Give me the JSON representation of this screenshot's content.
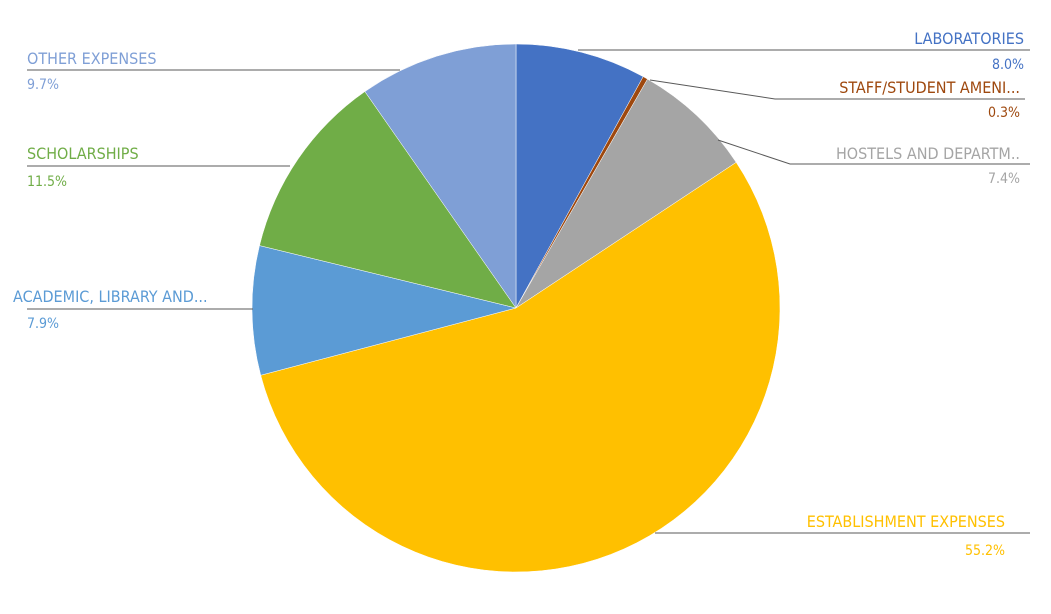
{
  "chart_data": {
    "type": "pie",
    "title": "",
    "start_angle_deg": 0,
    "direction": "clockwise",
    "slices": [
      {
        "name": "LABORATORIES",
        "value": 8.0,
        "label": "8.0%",
        "color": "#4472C4"
      },
      {
        "name": "STAFF/STUDENT AMENI...",
        "value": 0.3,
        "label": "0.3%",
        "color": "#9E480E"
      },
      {
        "name": "HOSTELS AND DEPARTM..",
        "value": 7.4,
        "label": "7.4%",
        "color": "#A5A5A5"
      },
      {
        "name": "ESTABLISHMENT EXPENSES",
        "value": 55.2,
        "label": "55.2%",
        "color": "#FFC000"
      },
      {
        "name": "ACADEMIC, LIBRARY AND...",
        "value": 7.9,
        "label": "7.9%",
        "color": "#5B9BD5"
      },
      {
        "name": "SCHOLARSHIPS",
        "value": 11.5,
        "label": "11.5%",
        "color": "#70AD47"
      },
      {
        "name": "OTHER EXPENSES",
        "value": 9.7,
        "label": "9.7%",
        "color": "#7F9FD6"
      }
    ],
    "legend": "none",
    "data_labels": "outside with leader lines"
  }
}
